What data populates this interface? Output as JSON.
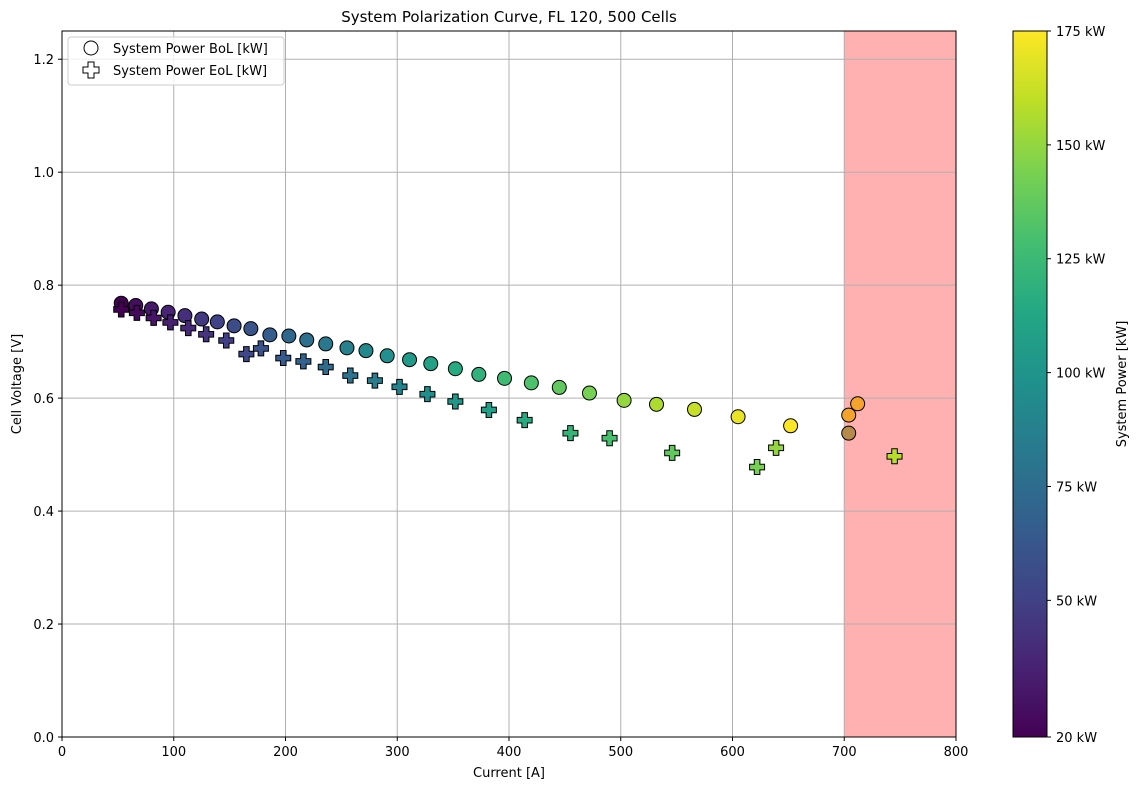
{
  "chart_data": {
    "type": "scatter",
    "title": "System Polarization Curve, FL 120, 500 Cells",
    "xlabel": "Current [A]",
    "ylabel": "Cell Voltage [V]",
    "xlim": [
      0,
      800
    ],
    "ylim": [
      0,
      1.25
    ],
    "x_ticks": [
      0,
      100,
      200,
      300,
      400,
      500,
      600,
      700,
      800
    ],
    "y_ticks": [
      0.0,
      0.2,
      0.4,
      0.6,
      0.8,
      1.0,
      1.2
    ],
    "x_tick_labels": [
      "0",
      "100",
      "200",
      "300",
      "400",
      "500",
      "600",
      "700",
      "800"
    ],
    "y_tick_labels": [
      "0.0",
      "0.2",
      "0.4",
      "0.6",
      "0.8",
      "1.0",
      "1.2"
    ],
    "grid": true,
    "legend_position": "top-left",
    "shaded_region": {
      "x_from": 700,
      "x_to": 800,
      "color": "#ffb1b1"
    },
    "colorbar": {
      "label": "System Power [kW]",
      "colormap": "viridis",
      "range": [
        20,
        175
      ],
      "ticks": [
        20,
        50,
        75,
        100,
        125,
        150,
        175
      ],
      "tick_labels": [
        "20 kW",
        "50 kW",
        "75 kW",
        "100 kW",
        "125 kW",
        "150 kW",
        "175 kW"
      ]
    },
    "series": [
      {
        "name": "System Power BoL [kW]",
        "marker": "circle",
        "points": [
          {
            "x": 53,
            "y": 0.768,
            "c": 20
          },
          {
            "x": 66,
            "y": 0.764,
            "c": 26
          },
          {
            "x": 80,
            "y": 0.758,
            "c": 31
          },
          {
            "x": 95,
            "y": 0.752,
            "c": 36
          },
          {
            "x": 110,
            "y": 0.746,
            "c": 41
          },
          {
            "x": 125,
            "y": 0.74,
            "c": 46
          },
          {
            "x": 139,
            "y": 0.735,
            "c": 51
          },
          {
            "x": 154,
            "y": 0.728,
            "c": 56
          },
          {
            "x": 169,
            "y": 0.723,
            "c": 61
          },
          {
            "x": 186,
            "y": 0.712,
            "c": 66
          },
          {
            "x": 203,
            "y": 0.71,
            "c": 72
          },
          {
            "x": 219,
            "y": 0.703,
            "c": 77
          },
          {
            "x": 236,
            "y": 0.696,
            "c": 82
          },
          {
            "x": 255,
            "y": 0.689,
            "c": 88
          },
          {
            "x": 272,
            "y": 0.684,
            "c": 93
          },
          {
            "x": 291,
            "y": 0.675,
            "c": 98
          },
          {
            "x": 311,
            "y": 0.668,
            "c": 104
          },
          {
            "x": 330,
            "y": 0.661,
            "c": 109
          },
          {
            "x": 352,
            "y": 0.652,
            "c": 115
          },
          {
            "x": 373,
            "y": 0.642,
            "c": 120
          },
          {
            "x": 396,
            "y": 0.635,
            "c": 126
          },
          {
            "x": 420,
            "y": 0.627,
            "c": 131
          },
          {
            "x": 445,
            "y": 0.619,
            "c": 137
          },
          {
            "x": 472,
            "y": 0.609,
            "c": 143
          },
          {
            "x": 503,
            "y": 0.596,
            "c": 150
          },
          {
            "x": 532,
            "y": 0.589,
            "c": 156
          },
          {
            "x": 566,
            "y": 0.58,
            "c": 162
          },
          {
            "x": 605,
            "y": 0.567,
            "c": 170
          },
          {
            "x": 652,
            "y": 0.551,
            "c": 175
          },
          {
            "x": 704,
            "y": 0.538,
            "c": 182
          },
          {
            "x": 704,
            "y": 0.57,
            "c": 192
          },
          {
            "x": 712,
            "y": 0.59,
            "c": 200
          }
        ]
      },
      {
        "name": "System Power EoL [kW]",
        "marker": "plus",
        "points": [
          {
            "x": 53,
            "y": 0.757,
            "c": 20
          },
          {
            "x": 67,
            "y": 0.751,
            "c": 24
          },
          {
            "x": 82,
            "y": 0.742,
            "c": 29
          },
          {
            "x": 97,
            "y": 0.734,
            "c": 34
          },
          {
            "x": 113,
            "y": 0.724,
            "c": 39
          },
          {
            "x": 129,
            "y": 0.713,
            "c": 44
          },
          {
            "x": 147,
            "y": 0.702,
            "c": 49
          },
          {
            "x": 165,
            "y": 0.678,
            "c": 54
          },
          {
            "x": 178,
            "y": 0.688,
            "c": 59
          },
          {
            "x": 198,
            "y": 0.671,
            "c": 64
          },
          {
            "x": 216,
            "y": 0.665,
            "c": 69
          },
          {
            "x": 236,
            "y": 0.655,
            "c": 74
          },
          {
            "x": 258,
            "y": 0.64,
            "c": 79
          },
          {
            "x": 280,
            "y": 0.631,
            "c": 85
          },
          {
            "x": 302,
            "y": 0.62,
            "c": 90
          },
          {
            "x": 327,
            "y": 0.607,
            "c": 96
          },
          {
            "x": 352,
            "y": 0.594,
            "c": 102
          },
          {
            "x": 382,
            "y": 0.579,
            "c": 108
          },
          {
            "x": 414,
            "y": 0.561,
            "c": 115
          },
          {
            "x": 455,
            "y": 0.538,
            "c": 122
          },
          {
            "x": 490,
            "y": 0.529,
            "c": 129
          },
          {
            "x": 546,
            "y": 0.503,
            "c": 137
          },
          {
            "x": 622,
            "y": 0.478,
            "c": 143
          },
          {
            "x": 639,
            "y": 0.512,
            "c": 150
          },
          {
            "x": 745,
            "y": 0.497,
            "c": 158
          }
        ]
      }
    ]
  }
}
